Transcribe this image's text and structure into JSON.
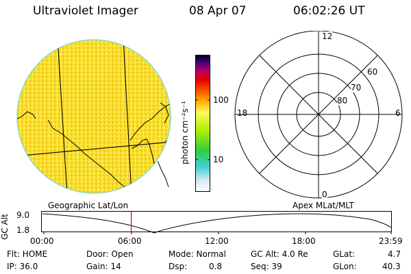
{
  "header": {
    "instrument": "Ultraviolet Imager",
    "date": "08 Apr 07",
    "time": "06:02:26 UT"
  },
  "colorbar": {
    "unit_label": "photon cm⁻²s⁻¹",
    "ticks": [
      "100",
      "10"
    ],
    "scale": "log"
  },
  "geo_map": {
    "label": "Geographic Lat/Lon"
  },
  "polar_plot": {
    "label": "Apex MLat/MLT",
    "mlt_labels": {
      "top": "12",
      "left": "18",
      "right": "6",
      "bottom": "0"
    },
    "lat_labels": [
      "60",
      "70",
      "80"
    ]
  },
  "altitude_plot": {
    "ylabel": "GC Alt",
    "ytick_top": "9.0",
    "ytick_bottom": "1.8",
    "xticks": [
      "00:00",
      "06:00",
      "12:00",
      "18:00",
      "23:59"
    ],
    "marker_color": "#dd0000",
    "marker_time_hours": 6.04
  },
  "status": {
    "flt": "Flt: HOME",
    "ip": "IP: 36.0",
    "door": "Door: Open",
    "gain": "Gain: 14",
    "mode": "Mode: Normal",
    "dsp_label": "Dsp:",
    "dsp_value": "0.8",
    "gcalt": "GC Alt: 4.0 Re",
    "seq": "Seq: 39",
    "glat_label": "GLat:",
    "glat_value": "4.7",
    "glon_label": "GLon:",
    "glon_value": "40.3"
  }
}
